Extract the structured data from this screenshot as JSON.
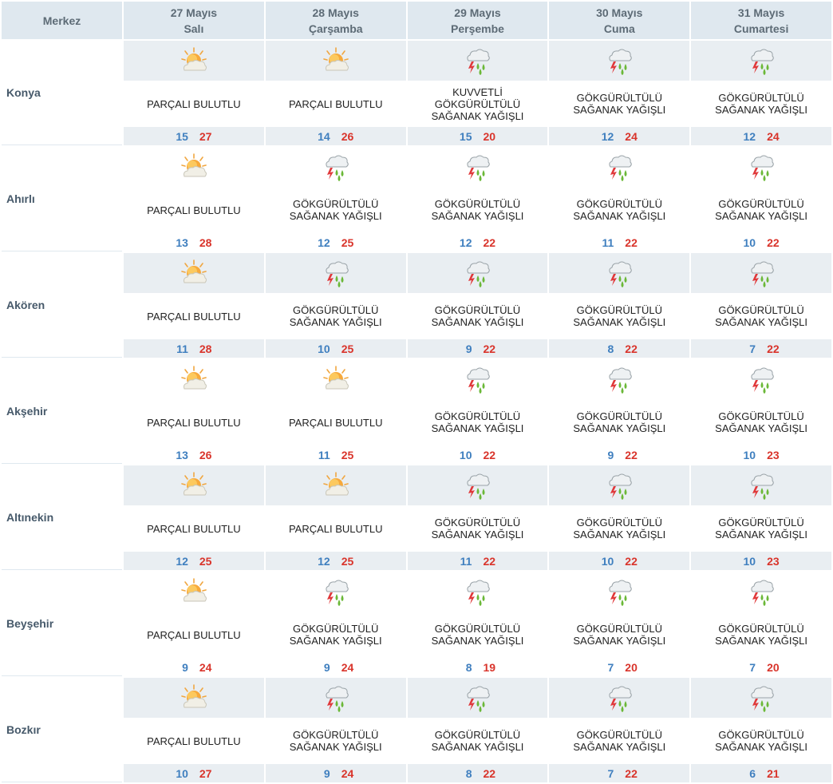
{
  "header": {
    "merkez": "Merkez",
    "days": [
      {
        "date": "27 Mayıs",
        "day": "Salı"
      },
      {
        "date": "28 Mayıs",
        "day": "Çarşamba"
      },
      {
        "date": "29 Mayıs",
        "day": "Perşembe"
      },
      {
        "date": "30 Mayıs",
        "day": "Cuma"
      },
      {
        "date": "31 Mayıs",
        "day": "Cumartesi"
      }
    ]
  },
  "colors": {
    "min_temp": "#3f7fbf",
    "max_temp": "#d9342b",
    "header_bg": "#dfe8ef",
    "row_grey": "#e9eef2"
  },
  "icons": {
    "partly_cloudy": "partly-cloudy-icon",
    "thunder_shower": "thunder-shower-icon"
  },
  "cities": [
    {
      "name": "Konya",
      "shade": "grey",
      "days": [
        {
          "icon": "partly_cloudy",
          "desc": [
            "PARÇALI BULUTLU"
          ],
          "min": "15",
          "max": "27"
        },
        {
          "icon": "partly_cloudy",
          "desc": [
            "PARÇALI BULUTLU"
          ],
          "min": "14",
          "max": "26"
        },
        {
          "icon": "thunder_shower",
          "desc": [
            "KUVVETLİ",
            "GÖKGÜRÜLTÜLÜ",
            "SAĞANAK YAĞIŞLI"
          ],
          "min": "15",
          "max": "20"
        },
        {
          "icon": "thunder_shower",
          "desc": [
            "GÖKGÜRÜLTÜLÜ",
            "SAĞANAK YAĞIŞLI"
          ],
          "min": "12",
          "max": "24"
        },
        {
          "icon": "thunder_shower",
          "desc": [
            "GÖKGÜRÜLTÜLÜ",
            "SAĞANAK YAĞIŞLI"
          ],
          "min": "12",
          "max": "24"
        }
      ]
    },
    {
      "name": "Ahırlı",
      "shade": "white",
      "days": [
        {
          "icon": "partly_cloudy",
          "desc": [
            "PARÇALI BULUTLU"
          ],
          "min": "13",
          "max": "28"
        },
        {
          "icon": "thunder_shower",
          "desc": [
            "GÖKGÜRÜLTÜLÜ",
            "SAĞANAK YAĞIŞLI"
          ],
          "min": "12",
          "max": "25"
        },
        {
          "icon": "thunder_shower",
          "desc": [
            "GÖKGÜRÜLTÜLÜ",
            "SAĞANAK YAĞIŞLI"
          ],
          "min": "12",
          "max": "22"
        },
        {
          "icon": "thunder_shower",
          "desc": [
            "GÖKGÜRÜLTÜLÜ",
            "SAĞANAK YAĞIŞLI"
          ],
          "min": "11",
          "max": "22"
        },
        {
          "icon": "thunder_shower",
          "desc": [
            "GÖKGÜRÜLTÜLÜ",
            "SAĞANAK YAĞIŞLI"
          ],
          "min": "10",
          "max": "22"
        }
      ]
    },
    {
      "name": "Akören",
      "shade": "grey",
      "days": [
        {
          "icon": "partly_cloudy",
          "desc": [
            "PARÇALI BULUTLU"
          ],
          "min": "11",
          "max": "28"
        },
        {
          "icon": "thunder_shower",
          "desc": [
            "GÖKGÜRÜLTÜLÜ",
            "SAĞANAK YAĞIŞLI"
          ],
          "min": "10",
          "max": "25"
        },
        {
          "icon": "thunder_shower",
          "desc": [
            "GÖKGÜRÜLTÜLÜ",
            "SAĞANAK YAĞIŞLI"
          ],
          "min": "9",
          "max": "22"
        },
        {
          "icon": "thunder_shower",
          "desc": [
            "GÖKGÜRÜLTÜLÜ",
            "SAĞANAK YAĞIŞLI"
          ],
          "min": "8",
          "max": "22"
        },
        {
          "icon": "thunder_shower",
          "desc": [
            "GÖKGÜRÜLTÜLÜ",
            "SAĞANAK YAĞIŞLI"
          ],
          "min": "7",
          "max": "22"
        }
      ]
    },
    {
      "name": "Akşehir",
      "shade": "white",
      "days": [
        {
          "icon": "partly_cloudy",
          "desc": [
            "PARÇALI BULUTLU"
          ],
          "min": "13",
          "max": "26"
        },
        {
          "icon": "partly_cloudy",
          "desc": [
            "PARÇALI BULUTLU"
          ],
          "min": "11",
          "max": "25"
        },
        {
          "icon": "thunder_shower",
          "desc": [
            "GÖKGÜRÜLTÜLÜ",
            "SAĞANAK YAĞIŞLI"
          ],
          "min": "10",
          "max": "22"
        },
        {
          "icon": "thunder_shower",
          "desc": [
            "GÖKGÜRÜLTÜLÜ",
            "SAĞANAK YAĞIŞLI"
          ],
          "min": "9",
          "max": "22"
        },
        {
          "icon": "thunder_shower",
          "desc": [
            "GÖKGÜRÜLTÜLÜ",
            "SAĞANAK YAĞIŞLI"
          ],
          "min": "10",
          "max": "23"
        }
      ]
    },
    {
      "name": "Altınekin",
      "shade": "grey",
      "days": [
        {
          "icon": "partly_cloudy",
          "desc": [
            "PARÇALI BULUTLU"
          ],
          "min": "12",
          "max": "25"
        },
        {
          "icon": "partly_cloudy",
          "desc": [
            "PARÇALI BULUTLU"
          ],
          "min": "12",
          "max": "25"
        },
        {
          "icon": "thunder_shower",
          "desc": [
            "GÖKGÜRÜLTÜLÜ",
            "SAĞANAK YAĞIŞLI"
          ],
          "min": "11",
          "max": "22"
        },
        {
          "icon": "thunder_shower",
          "desc": [
            "GÖKGÜRÜLTÜLÜ",
            "SAĞANAK YAĞIŞLI"
          ],
          "min": "10",
          "max": "22"
        },
        {
          "icon": "thunder_shower",
          "desc": [
            "GÖKGÜRÜLTÜLÜ",
            "SAĞANAK YAĞIŞLI"
          ],
          "min": "10",
          "max": "23"
        }
      ]
    },
    {
      "name": "Beyşehir",
      "shade": "white",
      "days": [
        {
          "icon": "partly_cloudy",
          "desc": [
            "PARÇALI BULUTLU"
          ],
          "min": "9",
          "max": "24"
        },
        {
          "icon": "thunder_shower",
          "desc": [
            "GÖKGÜRÜLTÜLÜ",
            "SAĞANAK YAĞIŞLI"
          ],
          "min": "9",
          "max": "24"
        },
        {
          "icon": "thunder_shower",
          "desc": [
            "GÖKGÜRÜLTÜLÜ",
            "SAĞANAK YAĞIŞLI"
          ],
          "min": "8",
          "max": "19"
        },
        {
          "icon": "thunder_shower",
          "desc": [
            "GÖKGÜRÜLTÜLÜ",
            "SAĞANAK YAĞIŞLI"
          ],
          "min": "7",
          "max": "20"
        },
        {
          "icon": "thunder_shower",
          "desc": [
            "GÖKGÜRÜLTÜLÜ",
            "SAĞANAK YAĞIŞLI"
          ],
          "min": "7",
          "max": "20"
        }
      ]
    },
    {
      "name": "Bozkır",
      "shade": "grey",
      "days": [
        {
          "icon": "partly_cloudy",
          "desc": [
            "PARÇALI BULUTLU"
          ],
          "min": "10",
          "max": "27"
        },
        {
          "icon": "thunder_shower",
          "desc": [
            "GÖKGÜRÜLTÜLÜ",
            "SAĞANAK YAĞIŞLI"
          ],
          "min": "9",
          "max": "24"
        },
        {
          "icon": "thunder_shower",
          "desc": [
            "GÖKGÜRÜLTÜLÜ",
            "SAĞANAK YAĞIŞLI"
          ],
          "min": "8",
          "max": "22"
        },
        {
          "icon": "thunder_shower",
          "desc": [
            "GÖKGÜRÜLTÜLÜ",
            "SAĞANAK YAĞIŞLI"
          ],
          "min": "7",
          "max": "22"
        },
        {
          "icon": "thunder_shower",
          "desc": [
            "GÖKGÜRÜLTÜLÜ",
            "SAĞANAK YAĞIŞLI"
          ],
          "min": "6",
          "max": "21"
        }
      ]
    }
  ]
}
